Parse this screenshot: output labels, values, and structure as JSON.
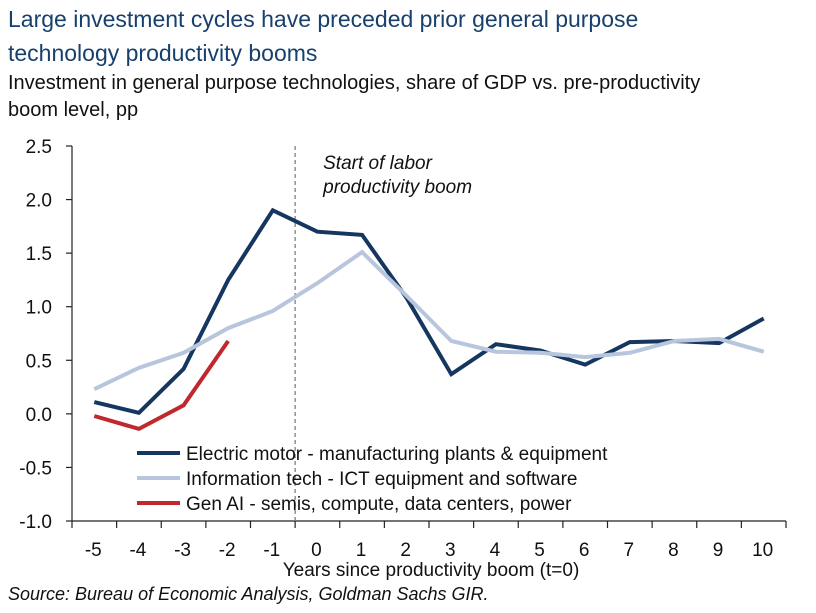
{
  "title_lines": [
    "Large investment cycles have preceded prior general purpose",
    "technology productivity booms"
  ],
  "subtitle_lines": [
    "Investment in general purpose technologies, share of GDP vs. pre-productivity",
    "boom level, pp"
  ],
  "source": "Source: Bureau of Economic Analysis, Goldman Sachs GIR.",
  "colors": {
    "title": "#17406d",
    "electric": "#14365f",
    "ict": "#b7c5dd",
    "genai": "#c0282d",
    "axis": "#222222",
    "marker": "#7f7f7f"
  },
  "chart_data": {
    "type": "line",
    "title": "Large investment cycles have preceded prior general purpose technology productivity booms",
    "ylabel": "Investment in general purpose technologies, share of GDP vs. pre-productivity boom level, pp",
    "xlabel": "Years since productivity boom (t=0)",
    "x": [
      -5,
      -4,
      -3,
      -2,
      -1,
      0,
      1,
      2,
      3,
      4,
      5,
      6,
      7,
      8,
      9,
      10
    ],
    "xlim": [
      -5.5,
      10.5
    ],
    "ylim": [
      -1.0,
      2.5
    ],
    "yticks": [
      -1.0,
      -0.5,
      0.0,
      0.5,
      1.0,
      1.5,
      2.0,
      2.5
    ],
    "ytick_labels": [
      "-1.0",
      "-0.5",
      "0.0",
      "0.5",
      "1.0",
      "1.5",
      "2.0",
      "2.5"
    ],
    "xtick_labels": [
      "-5",
      "-4",
      "-3",
      "-2",
      "-1",
      "0",
      "1",
      "2",
      "3",
      "4",
      "5",
      "6",
      "7",
      "8",
      "9",
      "10"
    ],
    "series": [
      {
        "name": "Electric motor -  manufacturing plants & equipment",
        "color_key": "electric",
        "x": [
          -5,
          -4,
          -3,
          -2,
          -1,
          0,
          1,
          2,
          3,
          4,
          5,
          6,
          7,
          8,
          9,
          10
        ],
        "values": [
          0.11,
          0.01,
          0.42,
          1.25,
          1.9,
          1.7,
          1.67,
          1.08,
          0.37,
          0.65,
          0.59,
          0.46,
          0.67,
          0.68,
          0.66,
          0.89
        ]
      },
      {
        "name": "Information tech - ICT equipment and software",
        "color_key": "ict",
        "x": [
          -5,
          -4,
          -3,
          -2,
          -1,
          0,
          1,
          2,
          3,
          4,
          5,
          6,
          7,
          8,
          9,
          10
        ],
        "values": [
          0.23,
          0.43,
          0.57,
          0.8,
          0.96,
          1.22,
          1.51,
          1.1,
          0.68,
          0.58,
          0.57,
          0.53,
          0.57,
          0.68,
          0.7,
          0.58
        ]
      },
      {
        "name": "Gen AI - semis, compute, data centers, power",
        "color_key": "genai",
        "x": [
          -5,
          -4,
          -3,
          -2
        ],
        "values": [
          -0.02,
          -0.14,
          0.08,
          0.68
        ]
      }
    ],
    "vline": {
      "x": -0.5,
      "style": "dashed"
    },
    "annotation": {
      "lines": [
        "Start of labor",
        "productivity boom"
      ],
      "x": -0.5,
      "y": 2.35
    },
    "legend": {
      "placement": "bottom-center"
    }
  }
}
